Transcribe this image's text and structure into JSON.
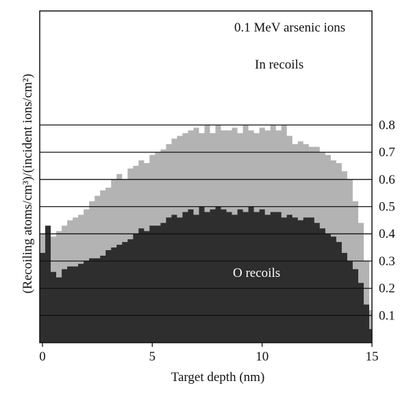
{
  "chart_data": {
    "type": "area",
    "annotations": [
      "0.1 MeV arsenic ions",
      "In recoils",
      "O recoils"
    ],
    "xlabel": "Target depth (nm)",
    "ylabel": "(Recoiling atoms/cm³)/(incident ions/cm²)",
    "xlim": [
      0,
      15
    ],
    "ylim": [
      0,
      0.82
    ],
    "xticks": [
      "0",
      "5",
      "10",
      "15"
    ],
    "yticks": [
      "0.1",
      "0.2",
      "0.3",
      "0.4",
      "0.5",
      "0.6",
      "0.7",
      "0.8"
    ],
    "ytick_side": "right",
    "grid": "horizontal",
    "series": [
      {
        "name": "In recoils",
        "color": "#b3b3b3",
        "x": [
          0.0,
          0.25,
          0.5,
          0.75,
          1.0,
          1.25,
          1.5,
          1.75,
          2.0,
          2.25,
          2.5,
          2.75,
          3.0,
          3.25,
          3.5,
          3.75,
          4.0,
          4.25,
          4.5,
          4.75,
          5.0,
          5.25,
          5.5,
          5.75,
          6.0,
          6.25,
          6.5,
          6.75,
          7.0,
          7.25,
          7.5,
          7.75,
          8.0,
          8.25,
          8.5,
          8.75,
          9.0,
          9.25,
          9.5,
          9.75,
          10.0,
          10.25,
          10.5,
          10.75,
          11.0,
          11.25,
          11.5,
          11.75,
          12.0,
          12.25,
          12.5,
          12.75,
          13.0,
          13.25,
          13.5,
          13.75,
          14.0,
          14.25,
          14.5,
          14.75,
          15.0
        ],
        "values": [
          0.4,
          0.4,
          0.39,
          0.41,
          0.43,
          0.45,
          0.46,
          0.47,
          0.49,
          0.52,
          0.54,
          0.56,
          0.57,
          0.6,
          0.62,
          0.6,
          0.64,
          0.65,
          0.67,
          0.66,
          0.69,
          0.7,
          0.71,
          0.73,
          0.75,
          0.76,
          0.77,
          0.78,
          0.79,
          0.77,
          0.8,
          0.77,
          0.8,
          0.78,
          0.78,
          0.79,
          0.77,
          0.8,
          0.78,
          0.77,
          0.79,
          0.78,
          0.8,
          0.78,
          0.8,
          0.76,
          0.73,
          0.74,
          0.73,
          0.72,
          0.72,
          0.7,
          0.69,
          0.67,
          0.66,
          0.63,
          0.6,
          0.52,
          0.44,
          0.3,
          0.12
        ]
      },
      {
        "name": "O recoils",
        "color": "#2e2e2e",
        "x": [
          0.0,
          0.25,
          0.5,
          0.75,
          1.0,
          1.25,
          1.5,
          1.75,
          2.0,
          2.25,
          2.5,
          2.75,
          3.0,
          3.25,
          3.5,
          3.75,
          4.0,
          4.25,
          4.5,
          4.75,
          5.0,
          5.25,
          5.5,
          5.75,
          6.0,
          6.25,
          6.5,
          6.75,
          7.0,
          7.25,
          7.5,
          7.75,
          8.0,
          8.25,
          8.5,
          8.75,
          9.0,
          9.25,
          9.5,
          9.75,
          10.0,
          10.25,
          10.5,
          10.75,
          11.0,
          11.25,
          11.5,
          11.75,
          12.0,
          12.25,
          12.5,
          12.75,
          13.0,
          13.25,
          13.5,
          13.75,
          14.0,
          14.25,
          14.5,
          14.75,
          15.0
        ],
        "values": [
          0.33,
          0.43,
          0.26,
          0.24,
          0.27,
          0.28,
          0.28,
          0.29,
          0.3,
          0.31,
          0.31,
          0.32,
          0.34,
          0.35,
          0.36,
          0.37,
          0.38,
          0.4,
          0.42,
          0.41,
          0.43,
          0.43,
          0.44,
          0.46,
          0.47,
          0.46,
          0.48,
          0.49,
          0.47,
          0.5,
          0.48,
          0.49,
          0.5,
          0.49,
          0.48,
          0.47,
          0.49,
          0.48,
          0.5,
          0.48,
          0.49,
          0.47,
          0.48,
          0.48,
          0.46,
          0.47,
          0.46,
          0.45,
          0.46,
          0.46,
          0.44,
          0.42,
          0.4,
          0.39,
          0.37,
          0.33,
          0.3,
          0.27,
          0.22,
          0.14,
          0.05
        ]
      }
    ]
  }
}
